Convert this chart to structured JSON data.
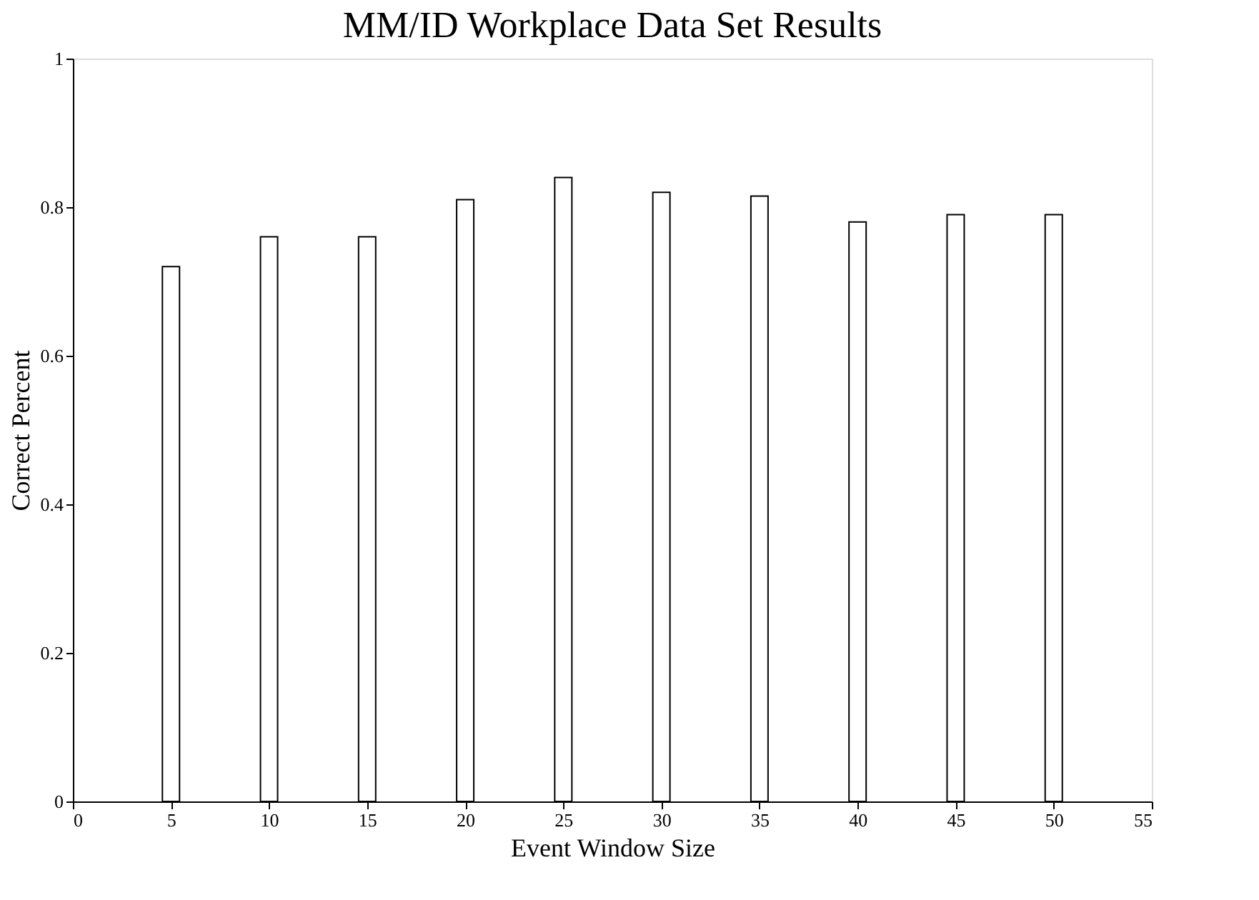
{
  "chart_data": {
    "type": "bar",
    "title": "MM/ID Workplace Data Set Results",
    "xlabel": "Event Window Size",
    "ylabel": "Correct Percent",
    "x": [
      5,
      10,
      15,
      20,
      25,
      30,
      35,
      40,
      45,
      50
    ],
    "series": [
      {
        "color": "#ffffff",
        "values": [
          0.72,
          0.76,
          0.76,
          0.81,
          0.84,
          0.82,
          0.815,
          0.78,
          0.79,
          0.79
        ]
      }
    ],
    "xlim": [
      0,
      55
    ],
    "xticks": [
      0,
      5,
      10,
      15,
      20,
      25,
      30,
      35,
      40,
      45,
      50,
      55
    ],
    "ylim": [
      0,
      1
    ],
    "yticks": [
      0,
      0.2,
      0.4,
      0.6,
      0.8,
      1
    ],
    "grid": false,
    "legend": false
  }
}
